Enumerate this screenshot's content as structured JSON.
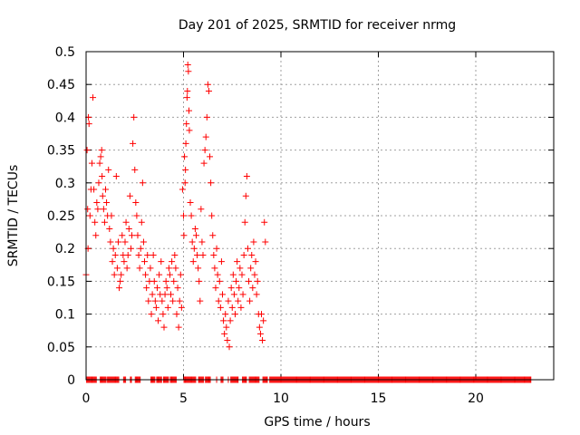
{
  "chart_data": {
    "type": "scatter",
    "title": "Day 201 of 2025, SRMTID for receiver nrmg",
    "xlabel": "GPS time / hours",
    "ylabel": "SRMTID / TECUs",
    "xlim": [
      0,
      24
    ],
    "ylim": [
      0,
      0.5
    ],
    "xticks": [
      0,
      5,
      10,
      15,
      20
    ],
    "xtick_labels": [
      "0",
      "5",
      "10",
      "15",
      "20"
    ],
    "yticks": [
      0,
      0.05,
      0.1,
      0.15,
      0.2,
      0.25,
      0.3,
      0.35,
      0.4,
      0.45,
      0.5
    ],
    "ytick_labels": [
      "0",
      "0.05",
      "0.1",
      "0.15",
      "0.2",
      "0.25",
      "0.3",
      "0.35",
      "0.4",
      "0.45",
      "0.5"
    ],
    "grid": true,
    "marker": "+",
    "color": "#ff0000",
    "series": [
      {
        "name": "SRMTID",
        "points": [
          [
            0.0,
            0.16
          ],
          [
            0.05,
            0.35
          ],
          [
            0.08,
            0.26
          ],
          [
            0.1,
            0.2
          ],
          [
            0.12,
            0.4
          ],
          [
            0.15,
            0.39
          ],
          [
            0.2,
            0.25
          ],
          [
            0.25,
            0.29
          ],
          [
            0.3,
            0.33
          ],
          [
            0.35,
            0.43
          ],
          [
            0.4,
            0.29
          ],
          [
            0.45,
            0.24
          ],
          [
            0.5,
            0.22
          ],
          [
            0.55,
            0.27
          ],
          [
            0.6,
            0.26
          ],
          [
            0.65,
            0.3
          ],
          [
            0.7,
            0.33
          ],
          [
            0.75,
            0.34
          ],
          [
            0.8,
            0.35
          ],
          [
            0.82,
            0.31
          ],
          [
            0.85,
            0.28
          ],
          [
            0.9,
            0.26
          ],
          [
            0.95,
            0.24
          ],
          [
            1.0,
            0.29
          ],
          [
            1.05,
            0.27
          ],
          [
            1.1,
            0.25
          ],
          [
            1.15,
            0.32
          ],
          [
            1.2,
            0.23
          ],
          [
            1.25,
            0.21
          ],
          [
            1.3,
            0.25
          ],
          [
            1.35,
            0.18
          ],
          [
            1.4,
            0.2
          ],
          [
            1.45,
            0.16
          ],
          [
            1.5,
            0.19
          ],
          [
            1.55,
            0.31
          ],
          [
            1.6,
            0.17
          ],
          [
            1.65,
            0.21
          ],
          [
            1.7,
            0.14
          ],
          [
            1.75,
            0.15
          ],
          [
            1.8,
            0.16
          ],
          [
            1.85,
            0.22
          ],
          [
            1.9,
            0.19
          ],
          [
            1.95,
            0.18
          ],
          [
            2.0,
            0.21
          ],
          [
            2.05,
            0.24
          ],
          [
            2.1,
            0.17
          ],
          [
            2.15,
            0.19
          ],
          [
            2.2,
            0.23
          ],
          [
            2.25,
            0.28
          ],
          [
            2.3,
            0.2
          ],
          [
            2.35,
            0.22
          ],
          [
            2.4,
            0.36
          ],
          [
            2.45,
            0.4
          ],
          [
            2.5,
            0.32
          ],
          [
            2.55,
            0.27
          ],
          [
            2.6,
            0.25
          ],
          [
            2.65,
            0.22
          ],
          [
            2.7,
            0.19
          ],
          [
            2.75,
            0.17
          ],
          [
            2.8,
            0.2
          ],
          [
            2.85,
            0.24
          ],
          [
            2.9,
            0.3
          ],
          [
            2.95,
            0.21
          ],
          [
            3.0,
            0.18
          ],
          [
            3.05,
            0.16
          ],
          [
            3.1,
            0.14
          ],
          [
            3.15,
            0.19
          ],
          [
            3.2,
            0.12
          ],
          [
            3.25,
            0.15
          ],
          [
            3.3,
            0.17
          ],
          [
            3.35,
            0.1
          ],
          [
            3.4,
            0.13
          ],
          [
            3.45,
            0.19
          ],
          [
            3.5,
            0.15
          ],
          [
            3.55,
            0.12
          ],
          [
            3.6,
            0.11
          ],
          [
            3.65,
            0.14
          ],
          [
            3.7,
            0.09
          ],
          [
            3.75,
            0.16
          ],
          [
            3.8,
            0.13
          ],
          [
            3.85,
            0.18
          ],
          [
            3.9,
            0.12
          ],
          [
            3.95,
            0.1
          ],
          [
            4.0,
            0.08
          ],
          [
            4.05,
            0.13
          ],
          [
            4.1,
            0.15
          ],
          [
            4.15,
            0.14
          ],
          [
            4.2,
            0.11
          ],
          [
            4.25,
            0.17
          ],
          [
            4.3,
            0.16
          ],
          [
            4.35,
            0.13
          ],
          [
            4.4,
            0.18
          ],
          [
            4.45,
            0.12
          ],
          [
            4.5,
            0.15
          ],
          [
            4.55,
            0.19
          ],
          [
            4.6,
            0.17
          ],
          [
            4.65,
            0.1
          ],
          [
            4.7,
            0.14
          ],
          [
            4.75,
            0.08
          ],
          [
            4.8,
            0.12
          ],
          [
            4.85,
            0.16
          ],
          [
            4.9,
            0.11
          ],
          [
            4.95,
            0.29
          ],
          [
            5.0,
            0.25
          ],
          [
            5.02,
            0.22
          ],
          [
            5.05,
            0.34
          ],
          [
            5.08,
            0.3
          ],
          [
            5.1,
            0.32
          ],
          [
            5.12,
            0.36
          ],
          [
            5.15,
            0.39
          ],
          [
            5.18,
            0.43
          ],
          [
            5.2,
            0.44
          ],
          [
            5.22,
            0.48
          ],
          [
            5.25,
            0.47
          ],
          [
            5.28,
            0.41
          ],
          [
            5.3,
            0.38
          ],
          [
            5.35,
            0.27
          ],
          [
            5.4,
            0.25
          ],
          [
            5.45,
            0.21
          ],
          [
            5.5,
            0.18
          ],
          [
            5.55,
            0.2
          ],
          [
            5.6,
            0.23
          ],
          [
            5.65,
            0.22
          ],
          [
            5.7,
            0.19
          ],
          [
            5.75,
            0.17
          ],
          [
            5.8,
            0.15
          ],
          [
            5.85,
            0.12
          ],
          [
            5.9,
            0.26
          ],
          [
            5.95,
            0.21
          ],
          [
            6.0,
            0.19
          ],
          [
            6.05,
            0.33
          ],
          [
            6.1,
            0.35
          ],
          [
            6.15,
            0.37
          ],
          [
            6.2,
            0.4
          ],
          [
            6.25,
            0.45
          ],
          [
            6.3,
            0.44
          ],
          [
            6.35,
            0.34
          ],
          [
            6.4,
            0.3
          ],
          [
            6.45,
            0.25
          ],
          [
            6.5,
            0.22
          ],
          [
            6.55,
            0.19
          ],
          [
            6.6,
            0.17
          ],
          [
            6.65,
            0.14
          ],
          [
            6.7,
            0.2
          ],
          [
            6.75,
            0.16
          ],
          [
            6.8,
            0.12
          ],
          [
            6.85,
            0.15
          ],
          [
            6.9,
            0.11
          ],
          [
            6.95,
            0.18
          ],
          [
            7.0,
            0.13
          ],
          [
            7.05,
            0.09
          ],
          [
            7.1,
            0.07
          ],
          [
            7.15,
            0.1
          ],
          [
            7.2,
            0.08
          ],
          [
            7.25,
            0.06
          ],
          [
            7.3,
            0.12
          ],
          [
            7.35,
            0.05
          ],
          [
            7.4,
            0.09
          ],
          [
            7.45,
            0.14
          ],
          [
            7.5,
            0.11
          ],
          [
            7.55,
            0.16
          ],
          [
            7.6,
            0.13
          ],
          [
            7.65,
            0.1
          ],
          [
            7.7,
            0.15
          ],
          [
            7.75,
            0.18
          ],
          [
            7.8,
            0.12
          ],
          [
            7.85,
            0.14
          ],
          [
            7.9,
            0.17
          ],
          [
            7.95,
            0.11
          ],
          [
            8.0,
            0.16
          ],
          [
            8.05,
            0.13
          ],
          [
            8.1,
            0.19
          ],
          [
            8.15,
            0.24
          ],
          [
            8.2,
            0.28
          ],
          [
            8.25,
            0.31
          ],
          [
            8.3,
            0.2
          ],
          [
            8.35,
            0.15
          ],
          [
            8.4,
            0.12
          ],
          [
            8.45,
            0.17
          ],
          [
            8.5,
            0.19
          ],
          [
            8.55,
            0.14
          ],
          [
            8.6,
            0.21
          ],
          [
            8.65,
            0.16
          ],
          [
            8.7,
            0.18
          ],
          [
            8.75,
            0.13
          ],
          [
            8.8,
            0.15
          ],
          [
            8.85,
            0.1
          ],
          [
            8.9,
            0.08
          ],
          [
            8.95,
            0.07
          ],
          [
            9.0,
            0.1
          ],
          [
            9.05,
            0.06
          ],
          [
            9.1,
            0.09
          ],
          [
            9.15,
            0.24
          ],
          [
            9.2,
            0.21
          ],
          [
            0.3,
            0.0
          ],
          [
            0.8,
            0.0
          ],
          [
            1.1,
            0.0
          ],
          [
            1.5,
            0.0
          ],
          [
            2.3,
            0.0
          ],
          [
            2.6,
            0.0
          ],
          [
            3.4,
            0.0
          ],
          [
            3.7,
            0.0
          ],
          [
            4.0,
            0.0
          ],
          [
            4.4,
            0.0
          ],
          [
            5.1,
            0.0
          ],
          [
            5.4,
            0.0
          ],
          [
            5.8,
            0.0
          ],
          [
            6.3,
            0.0
          ],
          [
            6.7,
            0.0
          ],
          [
            7.3,
            0.0
          ],
          [
            7.8,
            0.0
          ],
          [
            8.2,
            0.0
          ],
          [
            8.7,
            0.0
          ],
          [
            9.3,
            0.0
          ],
          [
            10.0,
            0.0
          ],
          [
            10.8,
            0.0
          ],
          [
            11.5,
            0.0
          ],
          [
            12.2,
            0.0
          ],
          [
            12.9,
            0.0
          ],
          [
            13.6,
            0.0
          ],
          [
            14.3,
            0.0
          ],
          [
            15.0,
            0.0
          ],
          [
            15.7,
            0.0
          ],
          [
            16.4,
            0.0
          ],
          [
            17.1,
            0.0
          ],
          [
            17.8,
            0.0
          ],
          [
            18.5,
            0.0
          ],
          [
            19.2,
            0.0
          ],
          [
            19.9,
            0.0
          ],
          [
            20.6,
            0.0
          ],
          [
            21.3,
            0.0
          ],
          [
            22.0,
            0.0
          ],
          [
            22.5,
            0.0
          ],
          [
            22.8,
            0.0
          ]
        ]
      }
    ],
    "zero_band": [
      {
        "start": 0.0,
        "end": 0.55
      },
      {
        "start": 0.7,
        "end": 1.05
      },
      {
        "start": 1.1,
        "end": 1.7
      },
      {
        "start": 1.9,
        "end": 2.05
      },
      {
        "start": 2.25,
        "end": 2.35
      },
      {
        "start": 2.5,
        "end": 2.8
      },
      {
        "start": 3.3,
        "end": 3.55
      },
      {
        "start": 3.6,
        "end": 3.9
      },
      {
        "start": 3.95,
        "end": 4.25
      },
      {
        "start": 4.3,
        "end": 4.65
      },
      {
        "start": 5.0,
        "end": 5.65
      },
      {
        "start": 5.75,
        "end": 6.05
      },
      {
        "start": 6.1,
        "end": 6.4
      },
      {
        "start": 6.9,
        "end": 7.05
      },
      {
        "start": 7.4,
        "end": 7.8
      },
      {
        "start": 8.0,
        "end": 8.25
      },
      {
        "start": 8.35,
        "end": 8.9
      },
      {
        "start": 9.05,
        "end": 9.3
      },
      {
        "start": 9.4,
        "end": 13.0
      },
      {
        "start": 13.0,
        "end": 17.0
      },
      {
        "start": 17.0,
        "end": 21.0
      },
      {
        "start": 21.0,
        "end": 22.85
      }
    ]
  }
}
